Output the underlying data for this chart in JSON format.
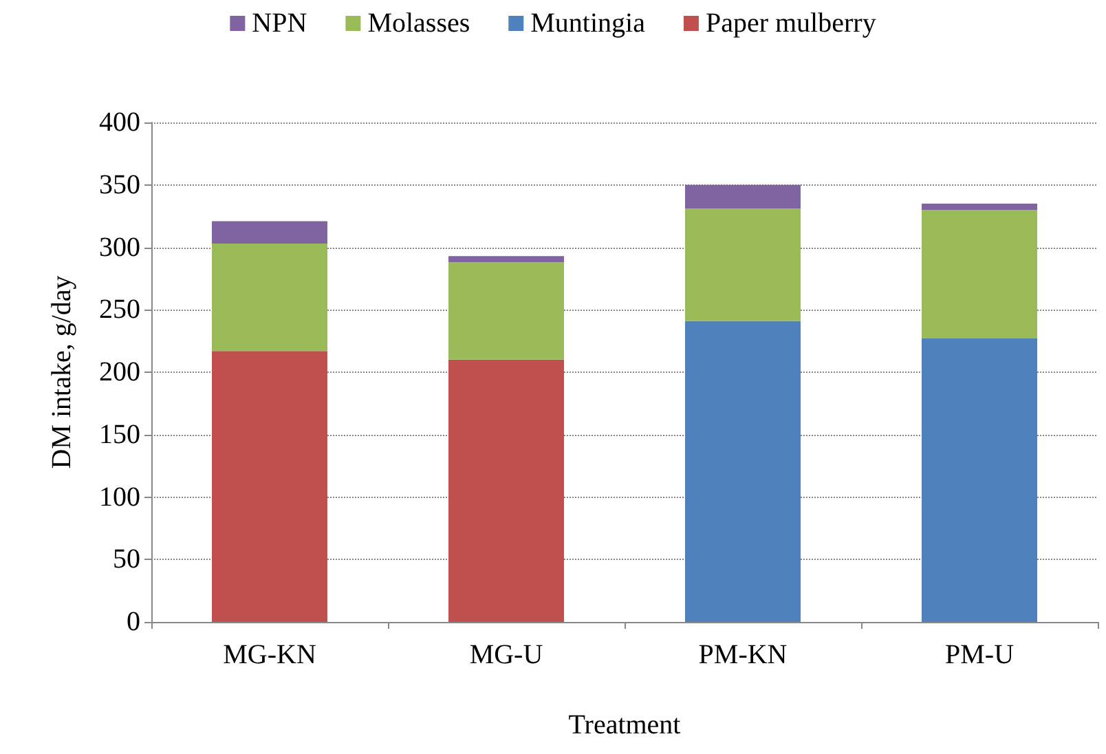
{
  "chart_data": {
    "type": "bar",
    "stacked": true,
    "xlabel": "Treatment",
    "ylabel": "DM intake, g/day",
    "categories": [
      "MG-KN",
      "MG-U",
      "PM-KN",
      "PM-U"
    ],
    "series": [
      {
        "name": "Paper mulberry",
        "color": "#c0504d",
        "values": [
          217,
          210,
          null,
          null
        ]
      },
      {
        "name": "Muntingia",
        "color": "#4f81bd",
        "values": [
          null,
          null,
          241,
          227
        ]
      },
      {
        "name": "Molasses",
        "color": "#9bbb59",
        "values": [
          86,
          78,
          90,
          103
        ]
      },
      {
        "name": "NPN",
        "color": "#8064a2",
        "values": [
          18,
          5,
          19,
          5
        ]
      }
    ],
    "ylim": [
      0,
      400
    ],
    "yticks": [
      0,
      50,
      100,
      150,
      200,
      250,
      300,
      350,
      400
    ],
    "grid": "y",
    "legend": "top"
  }
}
